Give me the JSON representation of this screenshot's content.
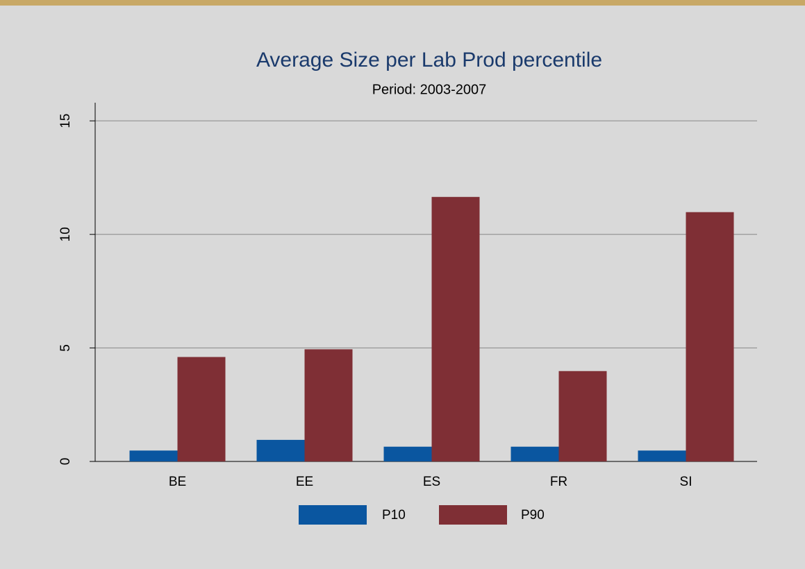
{
  "chart_data": {
    "type": "bar",
    "title": "Average Size per Lab Prod percentile",
    "subtitle": "Period: 2003-2007",
    "categories": [
      "BE",
      "EE",
      "ES",
      "FR",
      "SI"
    ],
    "series": [
      {
        "name": "P10",
        "color": "#0a56a0",
        "values": [
          0.48,
          0.95,
          0.65,
          0.65,
          0.48
        ]
      },
      {
        "name": "P90",
        "color": "#7f2f35",
        "values": [
          4.6,
          4.94,
          11.65,
          3.98,
          10.98
        ]
      }
    ],
    "ylim": [
      0,
      15.8
    ],
    "yticks": [
      0,
      5,
      10,
      15
    ],
    "grid": true
  }
}
